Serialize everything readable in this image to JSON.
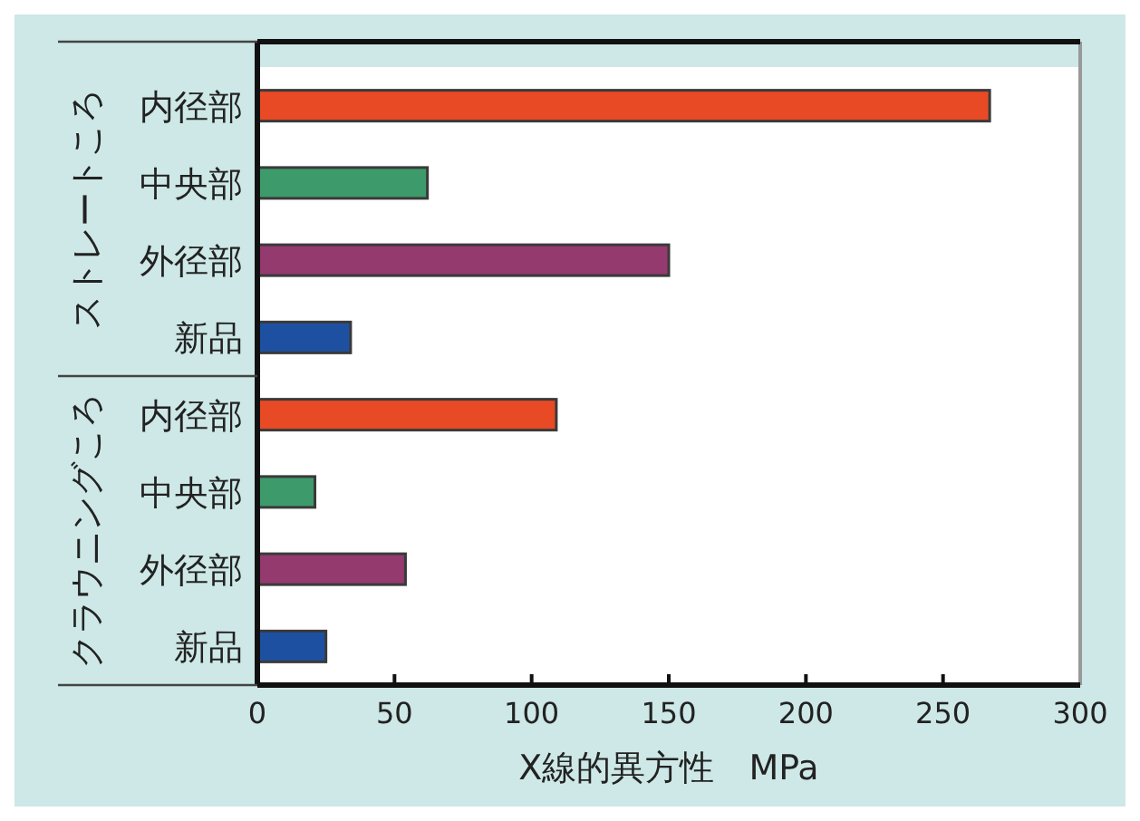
{
  "chart_data": {
    "type": "bar",
    "orientation": "horizontal",
    "xlabel": "X線的異方性　MPa",
    "categories": [
      "内径部",
      "中央部",
      "外径部",
      "新品",
      "内径部",
      "中央部",
      "外径部",
      "新品"
    ],
    "values": [
      267,
      62,
      150,
      34,
      109,
      21,
      54,
      25
    ],
    "colors": [
      "#e84a25",
      "#3d9a6b",
      "#943a6e",
      "#1e50a2",
      "#e84a25",
      "#3d9a6b",
      "#943a6e",
      "#1e50a2"
    ],
    "xlim": [
      0,
      300
    ],
    "xticks": [
      0,
      50,
      100,
      150,
      200,
      250,
      300
    ],
    "annotations": [
      "ストレートころ",
      "クラウニングころ"
    ]
  }
}
